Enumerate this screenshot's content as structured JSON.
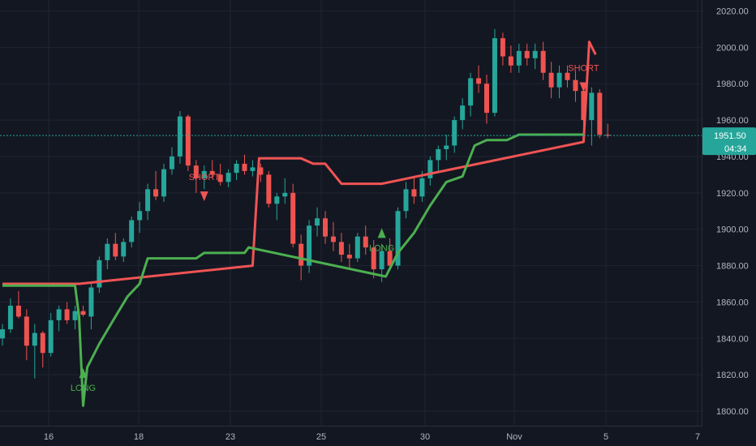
{
  "chart_data": {
    "type": "candlestick",
    "colors": {
      "background": "#131722",
      "grid": "#1f2433",
      "up": "#26a69a",
      "down": "#ef5350",
      "stop_long": "#4caf50",
      "stop_short": "#f05454",
      "price_line": "#26a69a",
      "axis_text": "#b2b5be"
    },
    "y_ticks": [
      "2020.00",
      "2000.00",
      "1980.00",
      "1960.00",
      "1940.00",
      "1920.00",
      "1900.00",
      "1880.00",
      "1860.00",
      "1840.00",
      "1820.00",
      "1800.00"
    ],
    "ylim": [
      1792,
      2026
    ],
    "x_ticks": [
      "16",
      "18",
      "23",
      "25",
      "30",
      "Nov",
      "5",
      "7"
    ],
    "last_price": "1951.50",
    "countdown": "04:34",
    "signals": [
      {
        "label": "LONG",
        "x": 10,
        "y": 1820
      },
      {
        "label": "SHORT",
        "x": 25,
        "y": 1919
      },
      {
        "label": "LONG",
        "x": 47,
        "y": 1897
      },
      {
        "label": "SHORT",
        "x": 72,
        "y": 1979
      }
    ],
    "candles": [
      [
        1840,
        1848,
        1836,
        1845
      ],
      [
        1845,
        1862,
        1843,
        1858
      ],
      [
        1858,
        1866,
        1851,
        1852
      ],
      [
        1852,
        1856,
        1828,
        1836
      ],
      [
        1836,
        1848,
        1818,
        1843
      ],
      [
        1843,
        1844,
        1824,
        1832
      ],
      [
        1832,
        1854,
        1830,
        1850
      ],
      [
        1850,
        1858,
        1844,
        1856
      ],
      [
        1856,
        1860,
        1848,
        1850
      ],
      [
        1850,
        1858,
        1845,
        1855
      ],
      [
        1855,
        1858,
        1852,
        1853
      ],
      [
        1852,
        1870,
        1845,
        1868
      ],
      [
        1868,
        1885,
        1865,
        1883
      ],
      [
        1883,
        1895,
        1878,
        1892
      ],
      [
        1892,
        1898,
        1883,
        1885
      ],
      [
        1885,
        1895,
        1882,
        1893
      ],
      [
        1893,
        1907,
        1890,
        1905
      ],
      [
        1905,
        1915,
        1898,
        1910
      ],
      [
        1910,
        1925,
        1905,
        1922
      ],
      [
        1922,
        1932,
        1916,
        1918
      ],
      [
        1918,
        1936,
        1915,
        1933
      ],
      [
        1933,
        1945,
        1930,
        1940
      ],
      [
        1940,
        1965,
        1936,
        1962
      ],
      [
        1962,
        1963,
        1932,
        1935
      ],
      [
        1935,
        1938,
        1920,
        1928
      ],
      [
        1928,
        1935,
        1922,
        1932
      ],
      [
        1932,
        1938,
        1928,
        1930
      ],
      [
        1930,
        1936,
        1924,
        1926
      ],
      [
        1926,
        1933,
        1923,
        1931
      ],
      [
        1931,
        1938,
        1927,
        1936
      ],
      [
        1936,
        1941,
        1930,
        1932
      ],
      [
        1932,
        1938,
        1929,
        1934
      ],
      [
        1934,
        1936,
        1926,
        1930
      ],
      [
        1930,
        1932,
        1912,
        1914
      ],
      [
        1914,
        1920,
        1905,
        1918
      ],
      [
        1918,
        1928,
        1914,
        1920
      ],
      [
        1920,
        1925,
        1890,
        1892
      ],
      [
        1892,
        1897,
        1872,
        1880
      ],
      [
        1880,
        1905,
        1876,
        1902
      ],
      [
        1902,
        1912,
        1896,
        1906
      ],
      [
        1906,
        1910,
        1892,
        1896
      ],
      [
        1896,
        1904,
        1888,
        1893
      ],
      [
        1893,
        1898,
        1882,
        1886
      ],
      [
        1886,
        1892,
        1878,
        1884
      ],
      [
        1884,
        1898,
        1882,
        1896
      ],
      [
        1896,
        1902,
        1886,
        1890
      ],
      [
        1890,
        1894,
        1873,
        1878
      ],
      [
        1878,
        1892,
        1871,
        1888
      ],
      [
        1888,
        1895,
        1878,
        1880
      ],
      [
        1880,
        1912,
        1878,
        1910
      ],
      [
        1910,
        1926,
        1906,
        1922
      ],
      [
        1922,
        1928,
        1914,
        1918
      ],
      [
        1918,
        1932,
        1915,
        1928
      ],
      [
        1928,
        1940,
        1924,
        1938
      ],
      [
        1938,
        1946,
        1932,
        1944
      ],
      [
        1944,
        1952,
        1938,
        1946
      ],
      [
        1946,
        1962,
        1942,
        1960
      ],
      [
        1960,
        1972,
        1955,
        1968
      ],
      [
        1968,
        1986,
        1962,
        1983
      ],
      [
        1983,
        1990,
        1975,
        1980
      ],
      [
        1980,
        1985,
        1958,
        1964
      ],
      [
        1964,
        2010,
        1962,
        2005
      ],
      [
        2005,
        2008,
        1990,
        1995
      ],
      [
        1995,
        2001,
        1986,
        1990
      ],
      [
        1990,
        2002,
        1986,
        1998
      ],
      [
        1998,
        2002,
        1990,
        1994
      ],
      [
        1994,
        2002,
        1988,
        1998
      ],
      [
        1998,
        2003,
        1982,
        1986
      ],
      [
        1986,
        1992,
        1972,
        1978
      ],
      [
        1978,
        1990,
        1972,
        1986
      ],
      [
        1986,
        1990,
        1978,
        1982
      ],
      [
        1982,
        1987,
        1970,
        1976
      ],
      [
        1976,
        1979,
        1955,
        1960
      ],
      [
        1960,
        1978,
        1946,
        1975
      ],
      [
        1975,
        1977,
        1950,
        1952
      ],
      [
        1952,
        1958,
        1950,
        1951.5
      ]
    ],
    "stop_long": [
      {
        "x": 0,
        "y": 1869
      },
      {
        "x": 9,
        "y": 1869
      },
      {
        "x": 9.5,
        "y": 1852
      },
      {
        "x": 10,
        "y": 1803
      },
      {
        "x": 10.5,
        "y": 1824
      },
      {
        "x": 12,
        "y": 1837
      },
      {
        "x": 14,
        "y": 1852
      },
      {
        "x": 15.5,
        "y": 1863
      },
      {
        "x": 17,
        "y": 1870
      },
      {
        "x": 18,
        "y": 1884
      },
      {
        "x": 24,
        "y": 1884
      },
      {
        "x": 25,
        "y": 1887
      },
      {
        "x": 30,
        "y": 1887
      },
      {
        "x": 30.5,
        "y": 1890
      },
      {
        "x": 47.5,
        "y": 1874
      },
      {
        "x": 49,
        "y": 1887
      },
      {
        "x": 51,
        "y": 1898
      },
      {
        "x": 53,
        "y": 1913
      },
      {
        "x": 55,
        "y": 1926
      },
      {
        "x": 57,
        "y": 1929
      },
      {
        "x": 58.5,
        "y": 1946
      },
      {
        "x": 60,
        "y": 1949
      },
      {
        "x": 62.5,
        "y": 1949
      },
      {
        "x": 64,
        "y": 1952
      },
      {
        "x": 72,
        "y": 1952
      }
    ],
    "stop_short": [
      {
        "x": 0,
        "y": 1870
      },
      {
        "x": 9.5,
        "y": 1870
      },
      {
        "x": 31,
        "y": 1880
      },
      {
        "x": 31.8,
        "y": 1939
      },
      {
        "x": 37,
        "y": 1939
      },
      {
        "x": 38.5,
        "y": 1936
      },
      {
        "x": 40,
        "y": 1936
      },
      {
        "x": 42,
        "y": 1925
      },
      {
        "x": 47,
        "y": 1925
      },
      {
        "x": 72,
        "y": 1948
      },
      {
        "x": 72.7,
        "y": 2003
      },
      {
        "x": 73.5,
        "y": 1996
      }
    ]
  }
}
